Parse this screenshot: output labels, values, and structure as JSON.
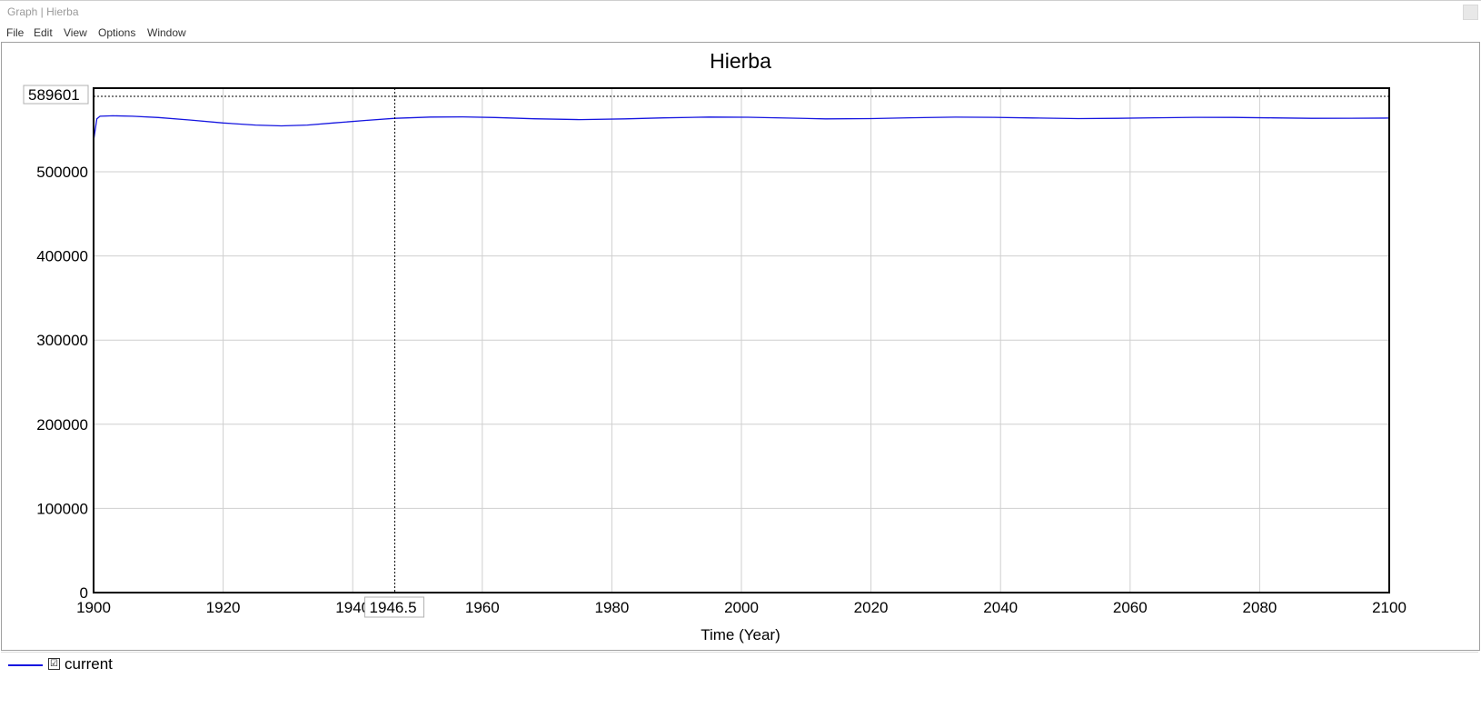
{
  "window": {
    "title": "Graph | Hierba"
  },
  "menu": {
    "items": [
      "File",
      "Edit",
      "View",
      "Options",
      "Window"
    ]
  },
  "legend": {
    "checkbox_symbol": "☑",
    "label": "current",
    "color": "#1515e0"
  },
  "cursor": {
    "x_readout": "1946.5",
    "y_readout": "589601",
    "x_value": 1946.5,
    "y_value": 589601
  },
  "chart_data": {
    "type": "line",
    "title": "Hierba",
    "xlabel": "Time (Year)",
    "ylabel": "",
    "xlim": [
      1900,
      2100
    ],
    "ylim": [
      0,
      600000
    ],
    "x_ticks": [
      1900,
      1920,
      1940,
      1960,
      1980,
      2000,
      2020,
      2040,
      2060,
      2080,
      2100
    ],
    "y_ticks": [
      0,
      100000,
      200000,
      300000,
      400000,
      500000
    ],
    "grid": true,
    "series": [
      {
        "name": "current",
        "color": "#1515e0",
        "x": [
          1900,
          1900.5,
          1901,
          1903,
          1906,
          1910,
          1915,
          1920,
          1925,
          1929,
          1933,
          1937,
          1942,
          1946.5,
          1952,
          1957,
          1962,
          1968,
          1975,
          1982,
          1988,
          1995,
          2001,
          2007,
          2013,
          2020,
          2026,
          2033,
          2039,
          2045,
          2052,
          2058,
          2064,
          2070,
          2076,
          2082,
          2088,
          2094,
          2100
        ],
        "y": [
          537000,
          563000,
          566000,
          566500,
          566000,
          564500,
          561500,
          558000,
          555500,
          554500,
          555500,
          558000,
          561000,
          563500,
          565000,
          565200,
          564500,
          563000,
          562000,
          562800,
          564000,
          565000,
          564800,
          563800,
          562800,
          563200,
          564200,
          564900,
          564700,
          563900,
          563200,
          563500,
          564200,
          564700,
          564600,
          564000,
          563500,
          563600,
          563800
        ]
      }
    ]
  }
}
